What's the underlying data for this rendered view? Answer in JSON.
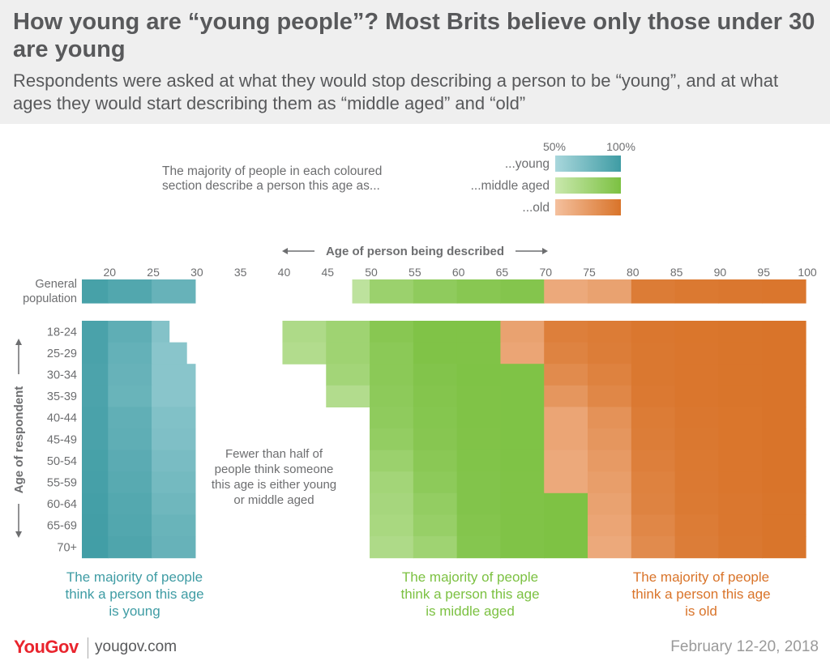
{
  "header": {
    "title": "How young are “young people”? Most Brits believe only those under 30 are young",
    "subtitle": "Respondents were asked at what they would stop describing a person to be “young”, and at what ages they would start describing them as “middle aged” and “old”"
  },
  "legend": {
    "description": [
      "The majority of people in each coloured",
      "section describe a person this age as..."
    ],
    "scale_low": "50%",
    "scale_high": "100%",
    "items": [
      {
        "label": "...young",
        "key": "young"
      },
      {
        "label": "...middle aged",
        "key": "middle"
      },
      {
        "label": "...old",
        "key": "old"
      }
    ]
  },
  "colors": {
    "young": [
      "#a9d7dc",
      "#3f9ca4"
    ],
    "middle": [
      "#c9e8ad",
      "#7cc142"
    ],
    "old": [
      "#f4c09e",
      "#d9742a"
    ]
  },
  "annotation": [
    "Fewer than half of",
    "people think someone",
    "this age is either young",
    "or middle aged"
  ],
  "bottom_labels": {
    "young": [
      "The majority of people",
      "think a person this age",
      "is young"
    ],
    "middle": [
      "The majority of people",
      "think a person this age",
      "is middle aged"
    ],
    "old": [
      "The majority of people",
      "think a person this age",
      "is old"
    ]
  },
  "footer": {
    "logo": "YouGov",
    "site": "yougov.com",
    "date": "February 12-20, 2018"
  },
  "chart_data": {
    "type": "heatmap",
    "x_axis_title": "Age of person being described",
    "y_axis_title": "Age of respondent",
    "x_range": [
      17,
      100
    ],
    "x_ticks": [
      20,
      25,
      30,
      35,
      40,
      45,
      50,
      55,
      60,
      65,
      70,
      75,
      80,
      85,
      90,
      95,
      100
    ],
    "segment_ages": [
      17,
      20,
      25,
      30,
      35,
      40,
      45,
      50,
      55,
      60,
      65,
      70,
      75,
      80,
      85,
      90,
      95,
      100
    ],
    "rows": [
      {
        "label": "General",
        "label2": "population",
        "cells": [
          [
            "young",
            0.92
          ],
          [
            "young",
            0.82
          ],
          [
            "young",
            0.62
          ],
          null,
          null,
          null,
          [
            "middle",
            0.15
          ],
          [
            "middle",
            0.6
          ],
          [
            "middle",
            0.75
          ],
          [
            "middle",
            0.85
          ],
          [
            "middle",
            0.9
          ],
          [
            "old",
            0.3
          ],
          [
            "old",
            0.4
          ],
          [
            "old",
            0.9
          ],
          [
            "old",
            0.94
          ],
          [
            "old",
            0.96
          ],
          [
            "old",
            0.97
          ]
        ]
      },
      {
        "label": "18-24",
        "cells": [
          [
            "young",
            0.9
          ],
          [
            "young",
            0.7
          ],
          [
            "young",
            0.35
          ],
          null,
          null,
          [
            "middle",
            0.35
          ],
          [
            "middle",
            0.55
          ],
          [
            "middle",
            0.85
          ],
          [
            "middle",
            0.95
          ],
          [
            "middle",
            0.95
          ],
          [
            "old",
            0.4
          ],
          [
            "old",
            0.85
          ],
          [
            "old",
            0.9
          ],
          [
            "old",
            0.96
          ],
          [
            "old",
            0.98
          ],
          [
            "old",
            0.99
          ],
          [
            "old",
            1.0
          ]
        ]
      },
      {
        "label": "25-29",
        "cells": [
          [
            "young",
            0.9
          ],
          [
            "young",
            0.65
          ],
          [
            "young",
            0.3
          ],
          null,
          null,
          [
            "middle",
            0.3
          ],
          [
            "middle",
            0.55
          ],
          [
            "middle",
            0.8
          ],
          [
            "middle",
            0.95
          ],
          [
            "middle",
            0.95
          ],
          [
            "old",
            0.35
          ],
          [
            "old",
            0.8
          ],
          [
            "old",
            0.88
          ],
          [
            "old",
            0.95
          ],
          [
            "old",
            0.97
          ],
          [
            "old",
            0.99
          ],
          [
            "old",
            1.0
          ]
        ]
      },
      {
        "label": "30-34",
        "cells": [
          [
            "young",
            0.88
          ],
          [
            "young",
            0.62
          ],
          [
            "young",
            0.3
          ],
          null,
          null,
          null,
          [
            "middle",
            0.5
          ],
          [
            "middle",
            0.8
          ],
          [
            "middle",
            0.92
          ],
          [
            "middle",
            0.96
          ],
          [
            "middle",
            0.96
          ],
          [
            "old",
            0.7
          ],
          [
            "old",
            0.82
          ],
          [
            "old",
            0.95
          ],
          [
            "old",
            0.97
          ],
          [
            "old",
            0.99
          ],
          [
            "old",
            1.0
          ]
        ]
      },
      {
        "label": "35-39",
        "cells": [
          [
            "young",
            0.88
          ],
          [
            "young",
            0.6
          ],
          [
            "young",
            0.3
          ],
          null,
          null,
          null,
          [
            "middle",
            0.3
          ],
          [
            "middle",
            0.78
          ],
          [
            "middle",
            0.9
          ],
          [
            "middle",
            0.95
          ],
          [
            "middle",
            0.96
          ],
          [
            "old",
            0.55
          ],
          [
            "old",
            0.75
          ],
          [
            "old",
            0.93
          ],
          [
            "old",
            0.97
          ],
          [
            "old",
            0.99
          ],
          [
            "old",
            1.0
          ]
        ]
      },
      {
        "label": "40-44",
        "cells": [
          [
            "young",
            0.9
          ],
          [
            "young",
            0.68
          ],
          [
            "young",
            0.38
          ],
          null,
          null,
          null,
          null,
          [
            "middle",
            0.75
          ],
          [
            "middle",
            0.88
          ],
          [
            "middle",
            0.95
          ],
          [
            "middle",
            0.96
          ],
          [
            "old",
            0.35
          ],
          [
            "old",
            0.6
          ],
          [
            "old",
            0.9
          ],
          [
            "old",
            0.96
          ],
          [
            "old",
            0.98
          ],
          [
            "old",
            1.0
          ]
        ]
      },
      {
        "label": "45-49",
        "cells": [
          [
            "young",
            0.9
          ],
          [
            "young",
            0.7
          ],
          [
            "young",
            0.4
          ],
          null,
          null,
          null,
          null,
          [
            "middle",
            0.7
          ],
          [
            "middle",
            0.86
          ],
          [
            "middle",
            0.94
          ],
          [
            "middle",
            0.96
          ],
          [
            "old",
            0.35
          ],
          [
            "old",
            0.55
          ],
          [
            "old",
            0.88
          ],
          [
            "old",
            0.95
          ],
          [
            "old",
            0.98
          ],
          [
            "old",
            1.0
          ]
        ]
      },
      {
        "label": "50-54",
        "cells": [
          [
            "young",
            0.92
          ],
          [
            "young",
            0.74
          ],
          [
            "young",
            0.45
          ],
          null,
          null,
          null,
          null,
          [
            "middle",
            0.6
          ],
          [
            "middle",
            0.82
          ],
          [
            "middle",
            0.93
          ],
          [
            "middle",
            0.96
          ],
          [
            "old",
            0.3
          ],
          [
            "old",
            0.5
          ],
          [
            "old",
            0.85
          ],
          [
            "old",
            0.94
          ],
          [
            "old",
            0.97
          ],
          [
            "old",
            1.0
          ]
        ]
      },
      {
        "label": "55-59",
        "cells": [
          [
            "young",
            0.93
          ],
          [
            "young",
            0.76
          ],
          [
            "young",
            0.5
          ],
          null,
          null,
          null,
          null,
          [
            "middle",
            0.5
          ],
          [
            "middle",
            0.78
          ],
          [
            "middle",
            0.92
          ],
          [
            "middle",
            0.95
          ],
          [
            "old",
            0.3
          ],
          [
            "old",
            0.45
          ],
          [
            "old",
            0.82
          ],
          [
            "old",
            0.93
          ],
          [
            "old",
            0.97
          ],
          [
            "old",
            1.0
          ]
        ]
      },
      {
        "label": "60-64",
        "cells": [
          [
            "young",
            0.95
          ],
          [
            "young",
            0.8
          ],
          [
            "young",
            0.55
          ],
          null,
          null,
          null,
          null,
          [
            "middle",
            0.45
          ],
          [
            "middle",
            0.7
          ],
          [
            "middle",
            0.92
          ],
          [
            "middle",
            0.95
          ],
          [
            "middle",
            0.98
          ],
          [
            "old",
            0.4
          ],
          [
            "old",
            0.8
          ],
          [
            "old",
            0.92
          ],
          [
            "old",
            0.96
          ],
          [
            "old",
            0.99
          ]
        ]
      },
      {
        "label": "65-69",
        "cells": [
          [
            "young",
            0.96
          ],
          [
            "young",
            0.82
          ],
          [
            "young",
            0.6
          ],
          null,
          null,
          null,
          null,
          [
            "middle",
            0.42
          ],
          [
            "middle",
            0.65
          ],
          [
            "middle",
            0.9
          ],
          [
            "middle",
            0.95
          ],
          [
            "middle",
            0.98
          ],
          [
            "old",
            0.35
          ],
          [
            "old",
            0.75
          ],
          [
            "old",
            0.9
          ],
          [
            "old",
            0.96
          ],
          [
            "old",
            0.99
          ]
        ]
      },
      {
        "label": "70+",
        "cells": [
          [
            "young",
            0.97
          ],
          [
            "young",
            0.85
          ],
          [
            "young",
            0.62
          ],
          null,
          null,
          null,
          null,
          [
            "middle",
            0.35
          ],
          [
            "middle",
            0.55
          ],
          [
            "middle",
            0.88
          ],
          [
            "middle",
            0.95
          ],
          [
            "middle",
            0.98
          ],
          [
            "old",
            0.3
          ],
          [
            "old",
            0.7
          ],
          [
            "old",
            0.88
          ],
          [
            "old",
            0.95
          ],
          [
            "old",
            0.99
          ]
        ]
      }
    ],
    "row_partial_ends": {
      "18-24": 27,
      "25-29": 29
    }
  }
}
